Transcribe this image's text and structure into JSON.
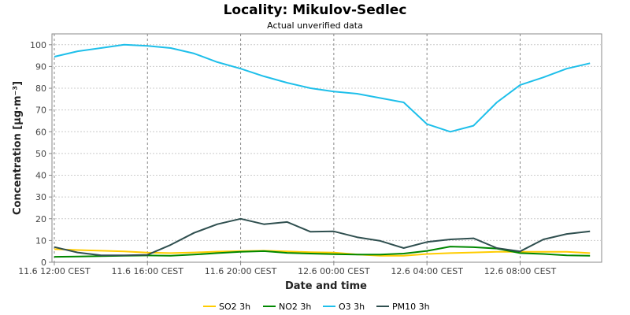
{
  "chart_data": {
    "type": "line",
    "title": "Locality: Mikulov-Sedlec",
    "subtitle": "Actual unverified data",
    "xlabel": "Date and time",
    "ylabel": "Concentration [µg·m⁻³]",
    "ylim": [
      0,
      105
    ],
    "yticks": [
      0,
      10,
      20,
      30,
      40,
      50,
      60,
      70,
      80,
      90,
      100
    ],
    "x_range": [
      -0.1,
      23.5
    ],
    "xticks": [
      {
        "label": "11.6 12:00 CEST",
        "pos": 0
      },
      {
        "label": "11.6 16:00 CEST",
        "pos": 4
      },
      {
        "label": "11.6 20:00 CEST",
        "pos": 8
      },
      {
        "label": "12.6 00:00 CEST",
        "pos": 12
      },
      {
        "label": "12.6 04:00 CEST",
        "pos": 16
      },
      {
        "label": "12.6 08:00 CEST",
        "pos": 20
      }
    ],
    "x": [
      0,
      1,
      2,
      3,
      4,
      5,
      6,
      7,
      8,
      9,
      10,
      11,
      12,
      13,
      14,
      15,
      16,
      17,
      18,
      19,
      20,
      21,
      22,
      23
    ],
    "grid": true,
    "legend_position": "bottom",
    "series": [
      {
        "name": "SO2 3h",
        "color": "#ffcc00",
        "values": [
          6,
          5.6,
          5.3,
          5,
          4.4,
          4.2,
          4.5,
          4.9,
          5.1,
          5.3,
          5,
          4.6,
          4.4,
          3.6,
          3,
          3,
          3.8,
          4.2,
          4.5,
          4.8,
          4.8,
          4.8,
          4.8,
          4.2
        ]
      },
      {
        "name": "NO2 3h",
        "color": "#008800",
        "values": [
          2.5,
          2.6,
          2.8,
          3,
          3.1,
          3,
          3.5,
          4.2,
          4.8,
          5.1,
          4.3,
          4,
          3.7,
          3.5,
          3.5,
          4,
          5.2,
          7.2,
          6.9,
          6.3,
          4.2,
          3.8,
          3.2,
          3
        ]
      },
      {
        "name": "O3 3h",
        "color": "#1ebfea",
        "values": [
          94.5,
          97,
          98.5,
          100,
          99.5,
          98.5,
          96,
          92,
          89,
          85.5,
          82.5,
          80,
          78.5,
          77.5,
          75.5,
          73.5,
          63.5,
          60,
          62.8,
          73.5,
          81.5,
          85,
          89,
          91.5
        ]
      },
      {
        "name": "PM10 3h",
        "color": "#2f4f4f",
        "values": [
          7,
          4.5,
          3.2,
          3.2,
          3.4,
          8,
          13.5,
          17.5,
          20,
          17.5,
          18.5,
          14,
          14.2,
          11.5,
          9.8,
          6.5,
          9.3,
          10.5,
          11,
          6.5,
          5,
          10.5,
          13,
          14.2
        ]
      }
    ]
  }
}
